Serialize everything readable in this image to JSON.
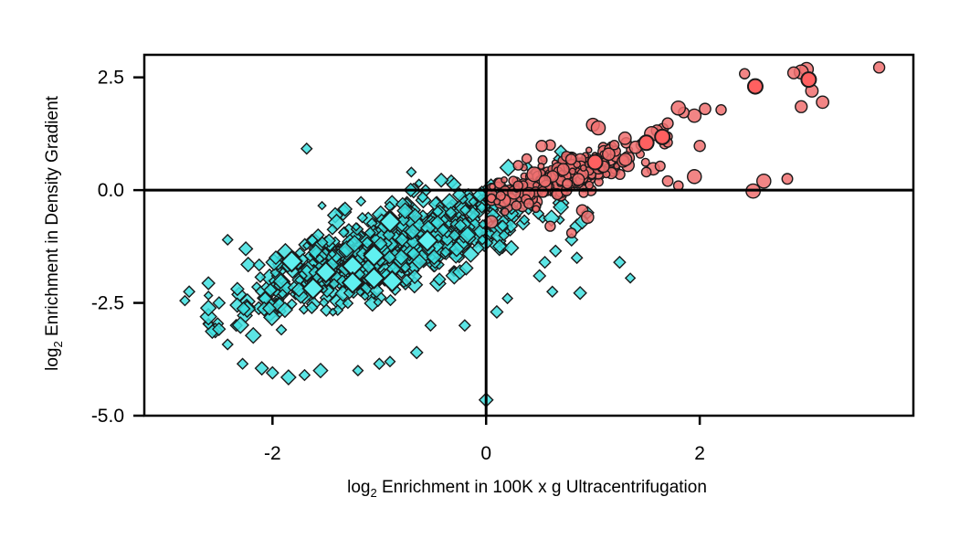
{
  "chart_data": {
    "type": "scatter",
    "xlabel": {
      "prefix": "log",
      "subscript": "2",
      "text": " Enrichment in 100K x g Ultracentrifugation"
    },
    "ylabel": {
      "prefix": "log",
      "subscript": "2",
      "text": " Enrichment in Density Gradient"
    },
    "xlim": [
      -3.2,
      4.0
    ],
    "ylim": [
      -5.0,
      3.0
    ],
    "x_ticks": [
      {
        "value": -2,
        "label": "-2"
      },
      {
        "value": 0,
        "label": "0"
      },
      {
        "value": 2,
        "label": "2"
      }
    ],
    "y_ticks": [
      {
        "value": 2.5,
        "label": "2.5"
      },
      {
        "value": 0.0,
        "label": "0.0"
      },
      {
        "value": -2.5,
        "label": "-2.5"
      },
      {
        "value": -5.0,
        "label": "-5.0"
      }
    ],
    "reference_lines": {
      "x": 0,
      "y": 0
    },
    "grid": false,
    "colors": {
      "depleted_fill": "#40e0e0",
      "depleted_highlight_fill": "#60f0f0",
      "enriched_fill": "#f07070",
      "enriched_highlight_fill": "#ff6060",
      "marker_stroke": "#1a1a1a",
      "axis": "#000000"
    },
    "series": [
      {
        "marker": "diamond",
        "color": "#40e0e0",
        "cluster": {
          "n": 900,
          "x_mean": -0.9,
          "x_sd": 0.65,
          "slope": 0.82,
          "intercept": -0.55,
          "resid_sd": 0.42,
          "x_min": -2.6,
          "x_max": 0.7
        },
        "points": [
          [
            -2.82,
            -2.45
          ],
          [
            -2.78,
            -2.25
          ],
          [
            -2.5,
            -2.5
          ],
          [
            -2.42,
            -1.1
          ],
          [
            -2.42,
            -3.42
          ],
          [
            -2.28,
            -3.85
          ],
          [
            -2.25,
            -1.3
          ],
          [
            -2.1,
            -3.95
          ],
          [
            -2.0,
            -4.05
          ],
          [
            -1.85,
            -4.15
          ],
          [
            -1.7,
            -4.1
          ],
          [
            -1.55,
            -4.0
          ],
          [
            -1.2,
            -4.0
          ],
          [
            -1.0,
            -3.85
          ],
          [
            -0.9,
            -3.8
          ],
          [
            -0.65,
            -3.6
          ],
          [
            -0.52,
            -3.0
          ],
          [
            -0.2,
            -3.0
          ],
          [
            0.1,
            -2.7
          ],
          [
            0.2,
            -2.4
          ],
          [
            0.5,
            -1.9
          ],
          [
            0.55,
            -1.6
          ],
          [
            0.65,
            -1.35
          ],
          [
            0.8,
            -1.1
          ],
          [
            0.85,
            -0.8
          ],
          [
            0.9,
            -0.7
          ],
          [
            0.95,
            -0.5
          ],
          [
            0.0,
            -4.65
          ],
          [
            -1.68,
            0.92
          ],
          [
            -0.7,
            0.4
          ],
          [
            -0.42,
            0.22
          ],
          [
            -0.3,
            0.12
          ],
          [
            -0.25,
            -0.1
          ],
          [
            0.85,
            -1.5
          ],
          [
            1.25,
            -1.6
          ],
          [
            1.35,
            -1.95
          ],
          [
            0.62,
            -2.25
          ],
          [
            0.88,
            -2.28
          ]
        ],
        "highlight": [
          [
            -1.82,
            -1.58
          ],
          [
            -1.62,
            -2.18
          ],
          [
            -1.5,
            -1.82
          ],
          [
            -1.25,
            -1.68
          ],
          [
            -1.25,
            -2.05
          ],
          [
            -1.05,
            -1.45
          ],
          [
            -1.05,
            -1.95
          ],
          [
            -0.9,
            -0.7
          ],
          [
            -0.88,
            -2.02
          ],
          [
            -0.55,
            -1.12
          ]
        ]
      },
      {
        "marker": "circle",
        "color": "#f07070",
        "cluster": {
          "n": 260,
          "x_mean": 0.75,
          "x_sd": 0.35,
          "slope": 0.8,
          "intercept": -0.28,
          "resid_sd": 0.22,
          "x_min": 0.05,
          "x_max": 1.7
        },
        "points": [
          [
            3.68,
            2.72
          ],
          [
            3.0,
            2.68
          ],
          [
            2.95,
            2.62
          ],
          [
            2.88,
            2.6
          ],
          [
            3.05,
            2.2
          ],
          [
            3.15,
            1.95
          ],
          [
            2.95,
            1.85
          ],
          [
            2.42,
            2.58
          ],
          [
            2.2,
            1.78
          ],
          [
            2.05,
            1.8
          ],
          [
            1.95,
            1.65
          ],
          [
            1.85,
            1.72
          ],
          [
            1.8,
            1.82
          ],
          [
            1.7,
            1.48
          ],
          [
            1.6,
            1.32
          ],
          [
            1.55,
            1.25
          ],
          [
            1.4,
            0.95
          ],
          [
            1.3,
            1.15
          ],
          [
            1.2,
            1.0
          ],
          [
            1.0,
            1.45
          ],
          [
            1.05,
            1.38
          ],
          [
            0.6,
            1.0
          ],
          [
            0.52,
            0.98
          ],
          [
            2.0,
            0.98
          ],
          [
            1.95,
            0.3
          ],
          [
            2.82,
            0.25
          ],
          [
            2.6,
            0.2
          ],
          [
            2.5,
            -0.02
          ],
          [
            1.8,
            0.1
          ],
          [
            1.7,
            0.2
          ],
          [
            0.38,
            0.7
          ],
          [
            0.3,
            0.55
          ],
          [
            0.45,
            0.35
          ],
          [
            1.5,
            0.4
          ],
          [
            1.1,
            0.52
          ],
          [
            0.9,
            -0.45
          ],
          [
            0.95,
            -0.6
          ],
          [
            0.6,
            -0.8
          ],
          [
            0.8,
            -0.95
          ],
          [
            0.4,
            -0.3
          ],
          [
            0.3,
            0.1
          ],
          [
            0.55,
            0.2
          ]
        ],
        "highlight": [
          [
            3.02,
            2.45
          ],
          [
            2.52,
            2.3
          ],
          [
            1.65,
            1.18
          ],
          [
            1.5,
            1.05
          ],
          [
            1.02,
            0.62
          ]
        ]
      }
    ]
  }
}
